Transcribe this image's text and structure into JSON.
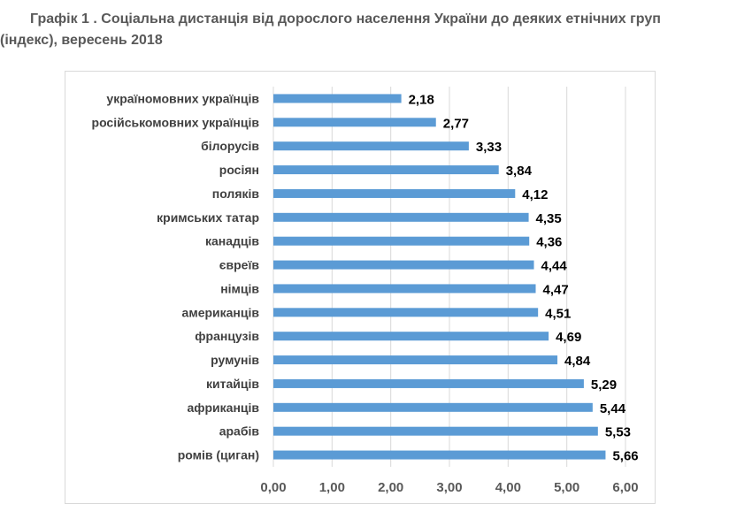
{
  "chart_data": {
    "type": "bar",
    "orientation": "horizontal",
    "title": "Графік 1 . Соціальна дистанція від дорослого населення України до деяких етнічних груп (індекс), вересень 2018",
    "title_line1": "Графік 1 . Соціальна дистанція від дорослого населення України до деяких етнічних груп",
    "title_line2": "(індекс), вересень 2018",
    "categories": [
      "україномовних українців",
      "російськомовних українців",
      "білорусів",
      "росіян",
      "поляків",
      "кримських татар",
      "канадців",
      "євреїв",
      "німців",
      "американців",
      "французів",
      "румунів",
      "китайців",
      "африканців",
      "арабів",
      "ромів (циган)"
    ],
    "values": [
      2.18,
      2.77,
      3.33,
      3.84,
      4.12,
      4.35,
      4.36,
      4.44,
      4.47,
      4.51,
      4.69,
      4.84,
      5.29,
      5.44,
      5.53,
      5.66
    ],
    "value_labels": [
      "2,18",
      "2,77",
      "3,33",
      "3,84",
      "4,12",
      "4,35",
      "4,36",
      "4,44",
      "4,47",
      "4,51",
      "4,69",
      "4,84",
      "5,29",
      "5,44",
      "5,53",
      "5,66"
    ],
    "xlim": [
      0,
      6
    ],
    "x_ticks": [
      "0,00",
      "1,00",
      "2,00",
      "3,00",
      "4,00",
      "5,00",
      "6,00"
    ],
    "xlabel": "",
    "ylabel": "",
    "grid": true,
    "legend": "none",
    "bar_color": "#5b9bd5"
  }
}
